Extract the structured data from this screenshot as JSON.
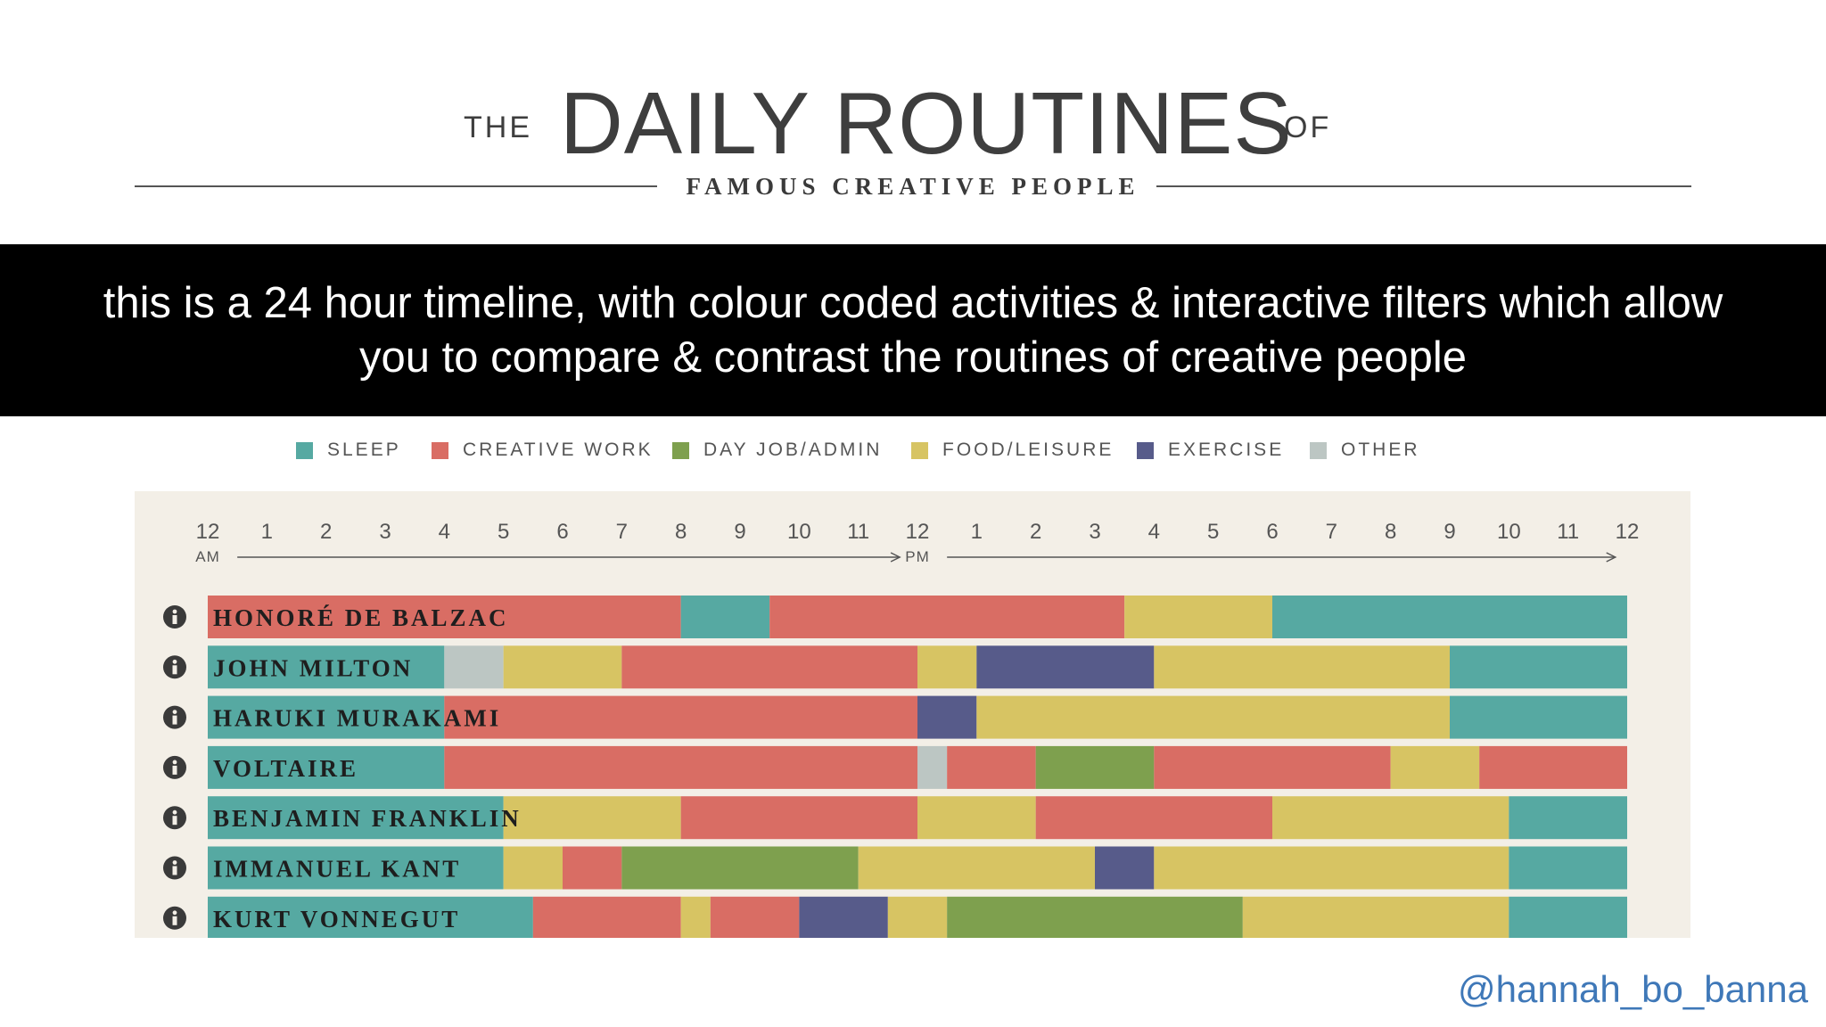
{
  "header": {
    "the": "THE",
    "title": "DAILY ROUTINES",
    "of": "OF",
    "subtitle": "FAMOUS CREATIVE PEOPLE"
  },
  "banner": {
    "line1": "this is a 24 hour timeline, with colour coded activities & interactive filters which allow",
    "line2": "you to compare & contrast the routines of creative people"
  },
  "handle": "@hannah_bo_banna",
  "colors": {
    "sleep": "#56a9a2",
    "creative": "#d96d64",
    "dayjob": "#7ea04e",
    "food": "#d7c463",
    "exercise": "#575b8a",
    "other": "#bcc6c3"
  },
  "chart_data": {
    "type": "timeline",
    "legend": [
      {
        "key": "sleep",
        "label": "SLEEP"
      },
      {
        "key": "creative",
        "label": "CREATIVE WORK"
      },
      {
        "key": "dayjob",
        "label": "DAY JOB/ADMIN"
      },
      {
        "key": "food",
        "label": "FOOD/LEISURE"
      },
      {
        "key": "exercise",
        "label": "EXERCISE"
      },
      {
        "key": "other",
        "label": "OTHER"
      }
    ],
    "x_tick_labels": [
      "12",
      "1",
      "2",
      "3",
      "4",
      "5",
      "6",
      "7",
      "8",
      "9",
      "10",
      "11",
      "12",
      "1",
      "2",
      "3",
      "4",
      "5",
      "6",
      "7",
      "8",
      "9",
      "10",
      "11",
      "12"
    ],
    "am_label": "AM",
    "pm_label": "PM",
    "x_range_hours": [
      0,
      24
    ],
    "people": [
      {
        "name": "HONORÉ DE BALZAC",
        "segments": [
          {
            "start": 0,
            "end": 8,
            "activity": "creative"
          },
          {
            "start": 8,
            "end": 9.5,
            "activity": "sleep"
          },
          {
            "start": 9.5,
            "end": 15.5,
            "activity": "creative"
          },
          {
            "start": 15.5,
            "end": 18,
            "activity": "food"
          },
          {
            "start": 18,
            "end": 24,
            "activity": "sleep"
          }
        ]
      },
      {
        "name": "JOHN MILTON",
        "segments": [
          {
            "start": 0,
            "end": 4,
            "activity": "sleep"
          },
          {
            "start": 4,
            "end": 5,
            "activity": "other"
          },
          {
            "start": 5,
            "end": 7,
            "activity": "food"
          },
          {
            "start": 7,
            "end": 12,
            "activity": "creative"
          },
          {
            "start": 12,
            "end": 13,
            "activity": "food"
          },
          {
            "start": 13,
            "end": 16,
            "activity": "exercise"
          },
          {
            "start": 16,
            "end": 21,
            "activity": "food"
          },
          {
            "start": 21,
            "end": 24,
            "activity": "sleep"
          }
        ]
      },
      {
        "name": "HARUKI MURAKAMI",
        "segments": [
          {
            "start": 0,
            "end": 4,
            "activity": "sleep"
          },
          {
            "start": 4,
            "end": 12,
            "activity": "creative"
          },
          {
            "start": 12,
            "end": 13,
            "activity": "exercise"
          },
          {
            "start": 13,
            "end": 21,
            "activity": "food"
          },
          {
            "start": 21,
            "end": 24,
            "activity": "sleep"
          }
        ]
      },
      {
        "name": "VOLTAIRE",
        "segments": [
          {
            "start": 0,
            "end": 4,
            "activity": "sleep"
          },
          {
            "start": 4,
            "end": 12,
            "activity": "creative"
          },
          {
            "start": 12,
            "end": 12.5,
            "activity": "other"
          },
          {
            "start": 12.5,
            "end": 14,
            "activity": "creative"
          },
          {
            "start": 14,
            "end": 16,
            "activity": "dayjob"
          },
          {
            "start": 16,
            "end": 20,
            "activity": "creative"
          },
          {
            "start": 20,
            "end": 21.5,
            "activity": "food"
          },
          {
            "start": 21.5,
            "end": 24,
            "activity": "creative"
          }
        ]
      },
      {
        "name": "BENJAMIN FRANKLIN",
        "segments": [
          {
            "start": 0,
            "end": 5,
            "activity": "sleep"
          },
          {
            "start": 5,
            "end": 8,
            "activity": "food"
          },
          {
            "start": 8,
            "end": 12,
            "activity": "creative"
          },
          {
            "start": 12,
            "end": 14,
            "activity": "food"
          },
          {
            "start": 14,
            "end": 18,
            "activity": "creative"
          },
          {
            "start": 18,
            "end": 22,
            "activity": "food"
          },
          {
            "start": 22,
            "end": 24,
            "activity": "sleep"
          }
        ]
      },
      {
        "name": "IMMANUEL KANT",
        "segments": [
          {
            "start": 0,
            "end": 5,
            "activity": "sleep"
          },
          {
            "start": 5,
            "end": 6,
            "activity": "food"
          },
          {
            "start": 6,
            "end": 7,
            "activity": "creative"
          },
          {
            "start": 7,
            "end": 11,
            "activity": "dayjob"
          },
          {
            "start": 11,
            "end": 15,
            "activity": "food"
          },
          {
            "start": 15,
            "end": 16,
            "activity": "exercise"
          },
          {
            "start": 16,
            "end": 22,
            "activity": "food"
          },
          {
            "start": 22,
            "end": 24,
            "activity": "sleep"
          }
        ]
      },
      {
        "name": "KURT VONNEGUT",
        "segments": [
          {
            "start": 0,
            "end": 5.5,
            "activity": "sleep"
          },
          {
            "start": 5.5,
            "end": 8,
            "activity": "creative"
          },
          {
            "start": 8,
            "end": 8.5,
            "activity": "food"
          },
          {
            "start": 8.5,
            "end": 10,
            "activity": "creative"
          },
          {
            "start": 10,
            "end": 11.5,
            "activity": "exercise"
          },
          {
            "start": 11.5,
            "end": 12.5,
            "activity": "food"
          },
          {
            "start": 12.5,
            "end": 17.5,
            "activity": "dayjob"
          },
          {
            "start": 17.5,
            "end": 22,
            "activity": "food"
          },
          {
            "start": 22,
            "end": 24,
            "activity": "sleep"
          }
        ]
      }
    ]
  }
}
